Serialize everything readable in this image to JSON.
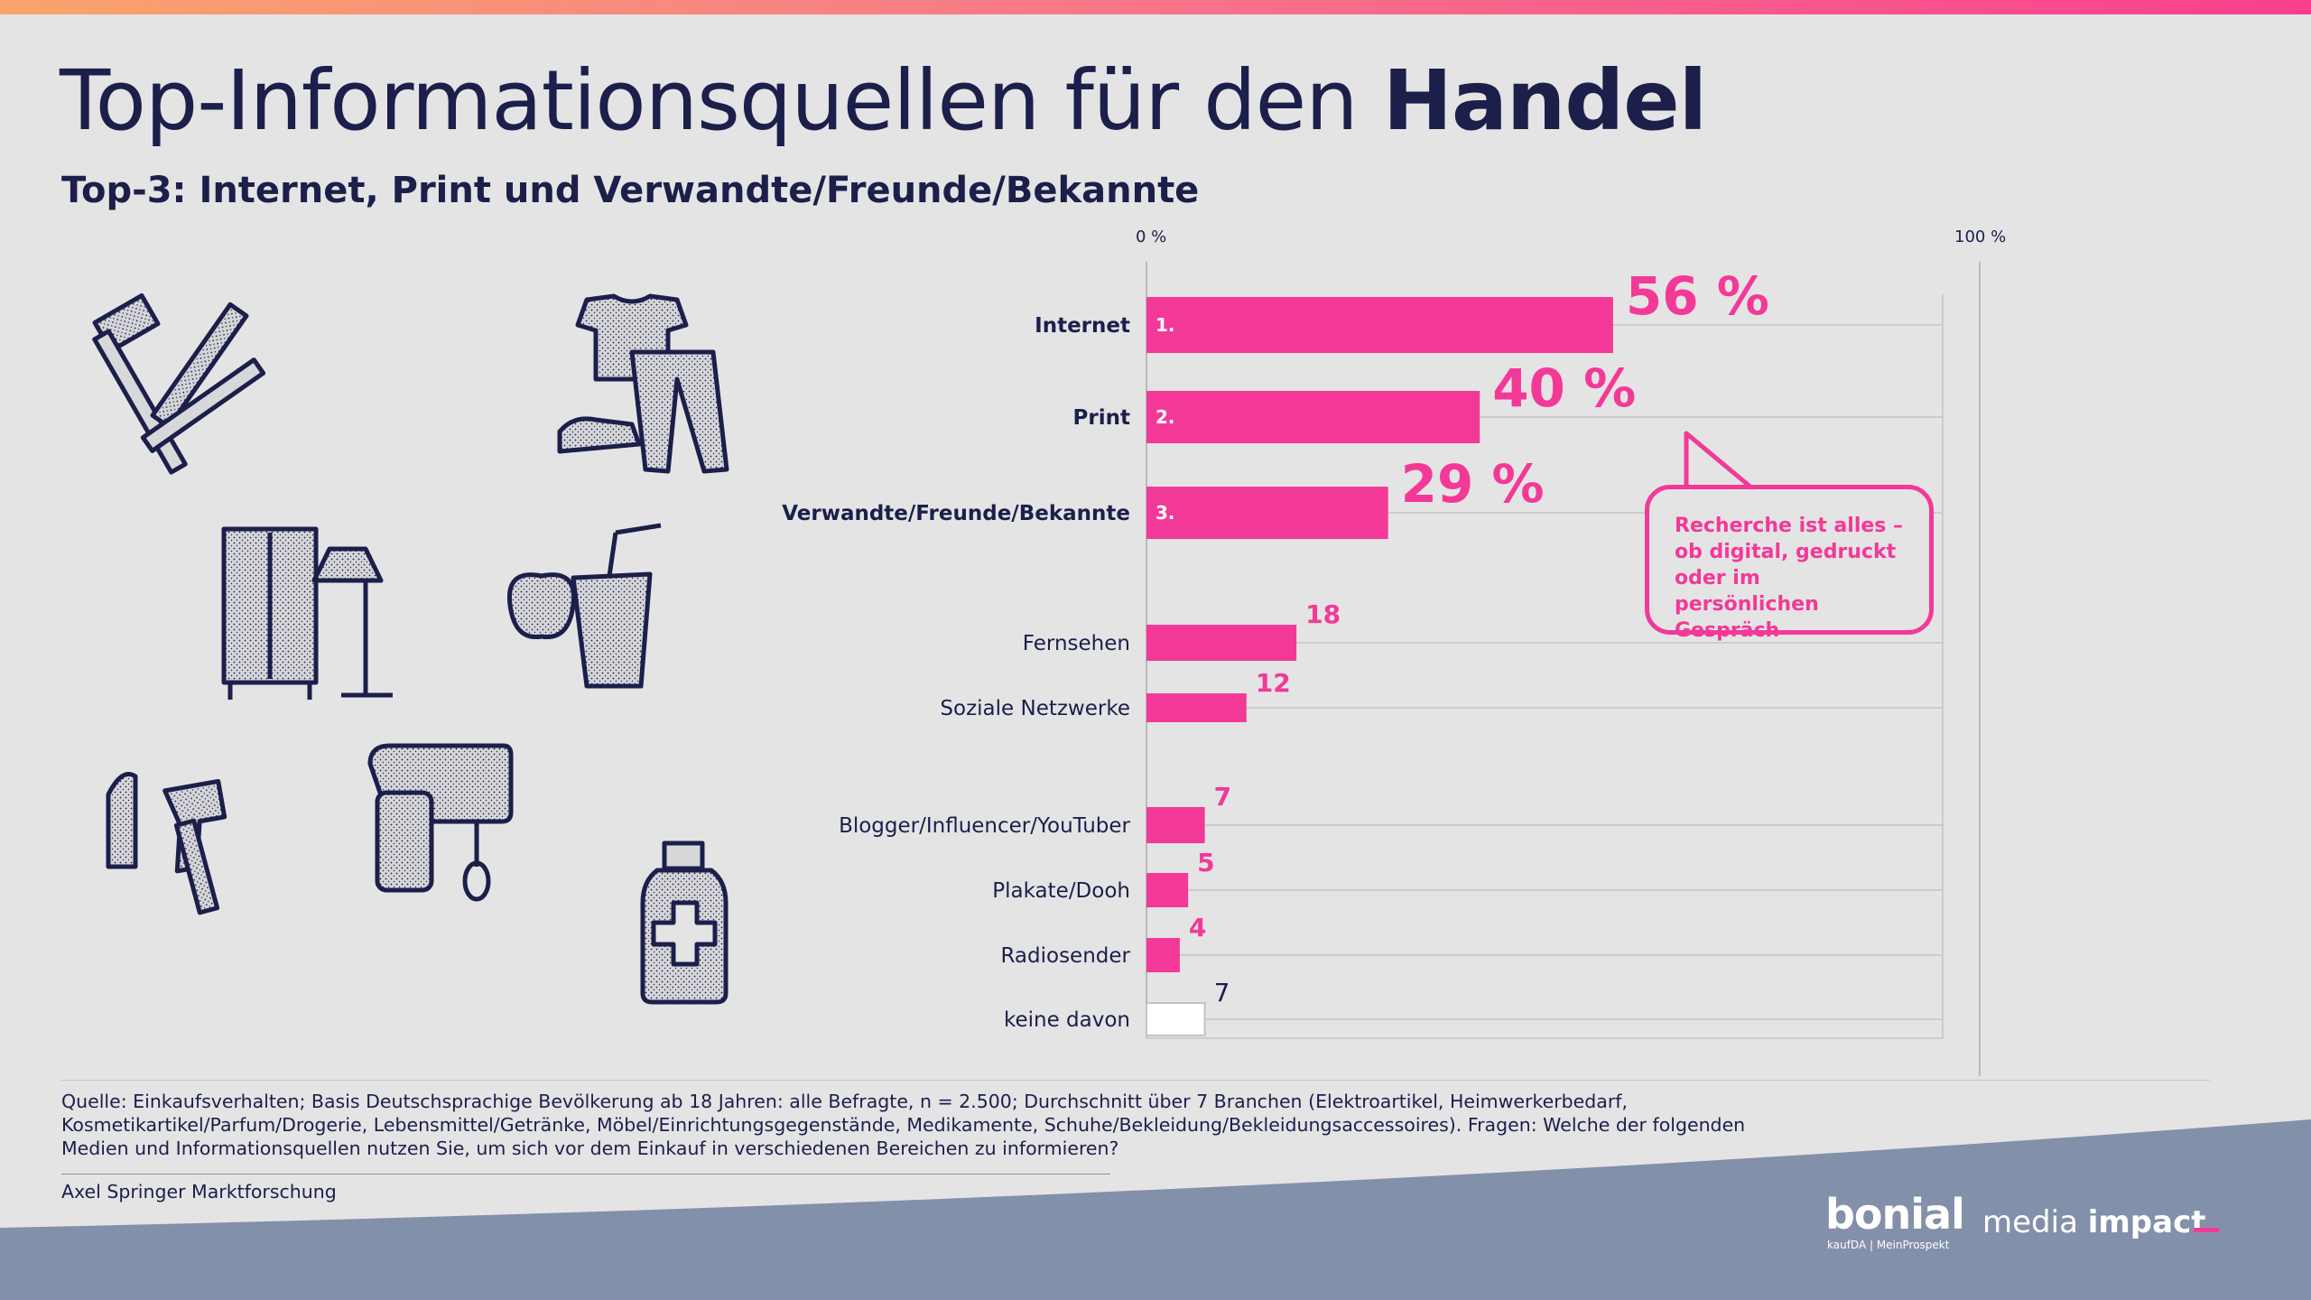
{
  "header": {
    "title_regular": "Top-Informationsquellen für den ",
    "title_bold": "Handel",
    "subtitle": "Top-3: Internet, Print und Verwandte/Freunde/Bekannte"
  },
  "chart_data": {
    "type": "bar",
    "orientation": "horizontal",
    "xlim": [
      0,
      100
    ],
    "x_tick_labels": [
      "0 %",
      "100 %"
    ],
    "categories": [
      "Internet",
      "Print",
      "Verwandte/Freunde/Bekannte",
      "Fernsehen",
      "Soziale Netzwerke",
      "Blogger/Influencer/YouTuber",
      "Plakate/Dooh",
      "Radiosender",
      "keine davon"
    ],
    "values": [
      56,
      40,
      29,
      18,
      12,
      7,
      5,
      4,
      7
    ],
    "value_labels": [
      "56 %",
      "40 %",
      "29 %",
      "18",
      "12",
      "7",
      "5",
      "4",
      "7"
    ],
    "rank_labels": [
      "1.",
      "2.",
      "3."
    ],
    "bar_color": "#f33997",
    "last_bar_color": "#ffffff",
    "grid": true,
    "legend": "none"
  },
  "callout": {
    "text": "Recherche ist alles – ob digital, gedruckt oder im  persönlichen Gespräch"
  },
  "icons": [
    "hammer-caliper-icon",
    "clothing-icon",
    "furniture-lamp-icon",
    "food-drink-icon",
    "cosmetics-icon",
    "mixer-icon",
    "medicine-bottle-icon"
  ],
  "footer": {
    "source": "Quelle: Einkaufsverhalten; Basis Deutschsprachige Bevölkerung ab 18 Jahren: alle Befragte, n = 2.500; Durchschnitt über 7 Branchen (Elektroartikel, Heimwerkerbedarf, Kosmetikartikel/Parfum/Drogerie, Lebensmittel/Getränke, Möbel/Einrichtungsgegenstände, Medikamente, Schuhe/Bekleidung/Bekleidungsaccessoires). Fragen: Welche der folgenden Medien und Informationsquellen nutzen Sie, um sich vor dem Einkauf in verschiedenen Bereichen zu informieren?",
    "credit": "Axel Springer Marktforschung",
    "logo_bonial": "bonial",
    "logo_bonial_sub": "kaufDA | MeinProspekt",
    "logo_media": "media",
    "logo_impact": "impact"
  },
  "colors": {
    "background": "#e4e4e5",
    "navy": "#1b1f4a",
    "accent": "#f33997",
    "footer": "#8390aa"
  }
}
